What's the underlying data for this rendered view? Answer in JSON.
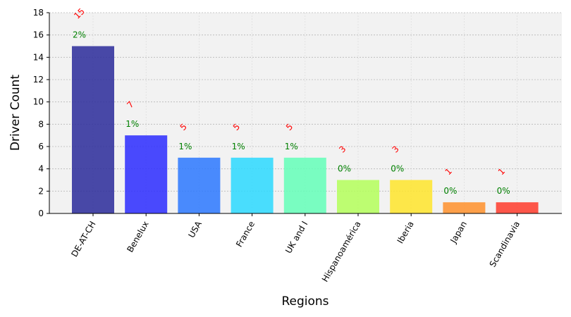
{
  "chart_data": {
    "type": "bar",
    "title": "",
    "xlabel": "Regions",
    "ylabel": "Driver Count",
    "ylim": [
      0,
      18
    ],
    "yticks": [
      0,
      2,
      4,
      6,
      8,
      10,
      12,
      14,
      16,
      18
    ],
    "grid": true,
    "categories": [
      "DE-AT-CH",
      "Benelux",
      "USA",
      "France",
      "UK and I",
      "Hispanoamérica",
      "Iberia",
      "Japan",
      "Scandinavia"
    ],
    "values": [
      15,
      7,
      5,
      5,
      5,
      3,
      3,
      1,
      1
    ],
    "count_labels": [
      "15",
      "7",
      "5",
      "5",
      "5",
      "3",
      "3",
      "1",
      "1"
    ],
    "percent_labels": [
      "2%",
      "1%",
      "1%",
      "1%",
      "1%",
      "0%",
      "0%",
      "0%",
      "0%"
    ],
    "bar_colors": [
      "#2a2a9a",
      "#2b2bff",
      "#2b78ff",
      "#2bd9ff",
      "#64ffb8",
      "#b4ff5a",
      "#ffe52b",
      "#ff902b",
      "#ff3b2b"
    ],
    "count_label_color": "#ff0000",
    "percent_label_color": "#008000",
    "plot_background": "#f2f2f2"
  }
}
